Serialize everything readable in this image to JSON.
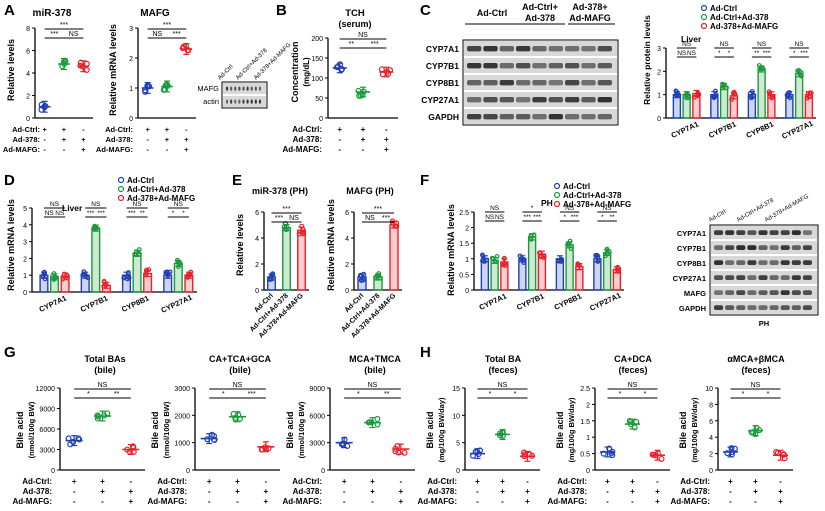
{
  "colors": {
    "ctrl": "#1f3fb5",
    "ad378": "#1a9a3a",
    "mafg": "#e8202a",
    "blot_bg": "#d8d8d8",
    "band": "#222222"
  },
  "panels": {
    "A": {
      "letter": "A",
      "title1": "miR-378",
      "title2": "MAFG",
      "ylabel1": "Relative levels",
      "ylabel2": "Relative mRNA levels",
      "blot_cols": [
        "Ad-Ctrl",
        "Ad-Ctrl+Ad-378",
        "Ad-378+Ad-MAFG"
      ],
      "blot_rows": [
        "MAFG",
        "actin"
      ]
    },
    "B": {
      "letter": "B",
      "title": "TCH",
      "subtitle": "(serum)",
      "ylabel": "Concentration",
      "yunit": "(mg/dL)"
    },
    "C": {
      "letter": "C",
      "lanes": [
        "Ad-Ctrl",
        "Ad-Ctrl+",
        "Ad-378",
        "Ad-378+",
        "Ad-MAFG"
      ],
      "rows": [
        "CYP7A1",
        "CYP7B1",
        "CYP8B1",
        "CYP27A1",
        "GAPDH"
      ],
      "ylabel": "Relative protein levels",
      "tissue": "Liver"
    },
    "D": {
      "letter": "D",
      "ylabel": "Relative mRNA levels",
      "tissue": "Liver"
    },
    "E": {
      "letter": "E",
      "title1": "miR-378 (PH)",
      "title2": "MAFG (PH)",
      "ylabel1": "Relative levels",
      "ylabel2": "Relative mRNA levels",
      "groups": [
        "Ad-Ctrl",
        "Ad-Ctrl+Ad-378",
        "Ad-378+Ad-MAFG"
      ]
    },
    "F": {
      "letter": "F",
      "ylabel": "Relative mRNA levels",
      "tissue": "PH",
      "blot_cols": [
        "Ad-Ctrl",
        "Ad-Ctrl+Ad-378",
        "Ad-378+Ad-MAFG"
      ],
      "blot_rows": [
        "CYP7A1",
        "CYP7B1",
        "CYP8B1",
        "CYP27A1",
        "MAFG",
        "GAPDH"
      ],
      "blot_label": "PH"
    },
    "G": {
      "letter": "G",
      "titles": [
        [
          "Total BAs",
          "(bile)"
        ],
        [
          "CA+TCA+GCA",
          "(bile)"
        ],
        [
          "MCA+TMCA",
          "(bile)"
        ]
      ],
      "ylabel": "Bile acid",
      "yunit": "(nmol/100g BW)"
    },
    "H": {
      "letter": "H",
      "titles": [
        [
          "Total BA",
          "(feces)"
        ],
        [
          "CA+DCA",
          "(feces)"
        ],
        [
          "αMCA+βMCA",
          "(feces)"
        ]
      ],
      "ylabel": "Bile acid",
      "yunit": "(mg/100g BW/day)"
    }
  },
  "treat": {
    "labels": [
      "Ad-Ctrl:",
      "Ad-378:",
      "Ad-MAFG:"
    ],
    "rows": [
      [
        "+",
        "+",
        "-"
      ],
      [
        "-",
        "+",
        "+"
      ],
      [
        "-",
        "-",
        "+"
      ]
    ]
  },
  "legend": [
    "Ad-Ctrl",
    "Ad-Ctrl+Ad-378",
    "Ad-378+Ad-MAFG"
  ],
  "chart_data": [
    {
      "id": "A1",
      "type": "bar",
      "title": "miR-378",
      "ylabel": "Relative levels",
      "categories": [
        "Ad-Ctrl",
        "Ad-Ctrl+Ad-378",
        "Ad-378+Ad-MAFG"
      ],
      "values": [
        1,
        4.8,
        4.6
      ],
      "ylim": [
        0,
        8
      ],
      "yticks": [
        0,
        2,
        4,
        6,
        8
      ],
      "sig": [
        "***",
        "NS",
        "***"
      ]
    },
    {
      "id": "A2",
      "type": "bar",
      "title": "MAFG",
      "ylabel": "Relative mRNA levels",
      "categories": [
        "Ad-Ctrl",
        "Ad-Ctrl+Ad-378",
        "Ad-378+Ad-MAFG"
      ],
      "values": [
        1,
        1.05,
        2.3
      ],
      "ylim": [
        0,
        3
      ],
      "yticks": [
        0,
        1,
        2,
        3
      ],
      "sig": [
        "NS",
        "***",
        "***"
      ]
    },
    {
      "id": "B",
      "type": "bar",
      "title": "TCH (serum)",
      "ylabel": "Concentration (mg/dL)",
      "categories": [
        "Ad-Ctrl",
        "Ad-Ctrl+Ad-378",
        "Ad-378+Ad-MAFG"
      ],
      "values": [
        125,
        65,
        115
      ],
      "ylim": [
        0,
        200
      ],
      "yticks": [
        0,
        50,
        100,
        150,
        200
      ],
      "sig": [
        "**",
        "***",
        "NS"
      ]
    },
    {
      "id": "C",
      "type": "grouped-bar",
      "ylabel": "Relative protein levels",
      "categories": [
        "CYP7A1",
        "CYP7B1",
        "CYP8B1",
        "CYP27A1"
      ],
      "series": [
        {
          "name": "Ad-Ctrl",
          "values": [
            1,
            1,
            1,
            1
          ]
        },
        {
          "name": "Ad-Ctrl+Ad-378",
          "values": [
            1.0,
            1.35,
            2.1,
            1.9
          ]
        },
        {
          "name": "Ad-378+Ad-MAFG",
          "values": [
            1.05,
            0.95,
            1.0,
            1.0
          ]
        }
      ],
      "ylim": [
        0,
        3
      ],
      "yticks": [
        0,
        1,
        2,
        3
      ],
      "sig": [
        [
          "NS",
          "NS",
          "NS"
        ],
        [
          "*",
          "*",
          "NS"
        ],
        [
          "**",
          "***",
          "NS"
        ],
        [
          "*",
          "***",
          "NS"
        ]
      ]
    },
    {
      "id": "D",
      "type": "grouped-bar",
      "ylabel": "Relative mRNA levels",
      "categories": [
        "CYP7A1",
        "CYP7B1",
        "CYP8B1",
        "CYP27A1"
      ],
      "series": [
        {
          "name": "Ad-Ctrl",
          "values": [
            1,
            1,
            1,
            1
          ]
        },
        {
          "name": "Ad-Ctrl+Ad-378",
          "values": [
            0.9,
            3.8,
            2.3,
            1.7
          ]
        },
        {
          "name": "Ad-378+Ad-MAFG",
          "values": [
            0.95,
            0.4,
            1.1,
            1.0
          ]
        }
      ],
      "ylim": [
        0,
        5
      ],
      "yticks": [
        0,
        1,
        2,
        3,
        4,
        5
      ],
      "sig": [
        [
          "NS",
          "NS",
          "NS"
        ],
        [
          "***",
          "***",
          "NS"
        ],
        [
          "***",
          "**",
          "NS"
        ],
        [
          "*",
          "*",
          "NS"
        ]
      ]
    },
    {
      "id": "E1",
      "type": "bar",
      "title": "miR-378 (PH)",
      "ylabel": "Relative levels",
      "categories": [
        "Ad-Ctrl",
        "Ad-Ctrl+Ad-378",
        "Ad-378+Ad-MAFG"
      ],
      "values": [
        1,
        4.8,
        4.6
      ],
      "ylim": [
        0,
        6
      ],
      "yticks": [
        0,
        2,
        4,
        6
      ],
      "sig": [
        "***",
        "NS",
        "***"
      ]
    },
    {
      "id": "E2",
      "type": "bar",
      "title": "MAFG (PH)",
      "ylabel": "Relative mRNA levels",
      "categories": [
        "Ad-Ctrl",
        "Ad-Ctrl+Ad-378",
        "Ad-378+Ad-MAFG"
      ],
      "values": [
        1,
        1.0,
        5
      ],
      "ylim": [
        0,
        6
      ],
      "yticks": [
        0,
        2,
        4,
        6
      ],
      "sig": [
        "NS",
        "***",
        "***"
      ]
    },
    {
      "id": "F",
      "type": "grouped-bar",
      "ylabel": "Relative mRNA levels",
      "categories": [
        "CYP7A1",
        "CYP7B1",
        "CYP8B1",
        "CYP27A1"
      ],
      "series": [
        {
          "name": "Ad-Ctrl",
          "values": [
            1,
            1,
            1,
            1
          ]
        },
        {
          "name": "Ad-Ctrl+Ad-378",
          "values": [
            0.95,
            1.7,
            1.45,
            1.2
          ]
        },
        {
          "name": "Ad-378+Ad-MAFG",
          "values": [
            0.9,
            1.15,
            0.75,
            0.65
          ]
        }
      ],
      "ylim": [
        0,
        2.5
      ],
      "yticks": [
        0,
        0.5,
        1,
        1.5,
        2,
        2.5
      ],
      "sig": [
        [
          "NS",
          "NS",
          "NS"
        ],
        [
          "***",
          "***",
          "*"
        ],
        [
          "*",
          "***",
          "NS"
        ],
        [
          "*",
          "**",
          "NS"
        ]
      ]
    },
    {
      "id": "G1",
      "type": "bar",
      "title": "Total BAs (bile)",
      "ylabel": "Bile acid (nmol/100g BW)",
      "categories": [
        "Ad-Ctrl",
        "Ad-Ctrl+Ad-378",
        "Ad-378+Ad-MAFG"
      ],
      "values": [
        4300,
        7900,
        3000
      ],
      "ylim": [
        0,
        12000
      ],
      "yticks": [
        0,
        3000,
        6000,
        9000,
        12000
      ],
      "sig": [
        "*",
        "**",
        "NS"
      ]
    },
    {
      "id": "G2",
      "type": "bar",
      "title": "CA+TCA+GCA (bile)",
      "ylabel": "Bile acid (nmol/100g BW)",
      "categories": [
        "Ad-Ctrl",
        "Ad-Ctrl+Ad-378",
        "Ad-378+Ad-MAFG"
      ],
      "values": [
        1150,
        1950,
        850
      ],
      "ylim": [
        0,
        3000
      ],
      "yticks": [
        0,
        1000,
        2000,
        3000
      ],
      "sig": [
        "*",
        "***",
        "NS"
      ]
    },
    {
      "id": "G3",
      "type": "bar",
      "title": "MCA+TMCA (bile)",
      "ylabel": "Bile acid (nmol/100g BW)",
      "categories": [
        "Ad-Ctrl",
        "Ad-Ctrl+Ad-378",
        "Ad-378+Ad-MAFG"
      ],
      "values": [
        3000,
        5200,
        2300
      ],
      "ylim": [
        0,
        9000
      ],
      "yticks": [
        0,
        3000,
        6000,
        9000
      ],
      "sig": [
        "*",
        "**",
        "NS"
      ]
    },
    {
      "id": "H1",
      "type": "bar",
      "title": "Total BA (feces)",
      "ylabel": "Bile acid (mg/100g BW/day)",
      "categories": [
        "Ad-Ctrl",
        "Ad-Ctrl+Ad-378",
        "Ad-378+Ad-MAFG"
      ],
      "values": [
        3,
        6.5,
        2.5
      ],
      "ylim": [
        0,
        15
      ],
      "yticks": [
        0,
        5,
        10,
        15
      ],
      "sig": [
        "*",
        "*",
        "NS"
      ]
    },
    {
      "id": "H2",
      "type": "bar",
      "title": "CA+DCA (feces)",
      "ylabel": "Bile acid (mg/100g BW/day)",
      "categories": [
        "Ad-Ctrl",
        "Ad-Ctrl+Ad-378",
        "Ad-378+Ad-MAFG"
      ],
      "values": [
        0.55,
        1.4,
        0.45
      ],
      "ylim": [
        0,
        2.5
      ],
      "yticks": [
        0,
        0.5,
        1,
        1.5,
        2,
        2.5
      ],
      "sig": [
        "*",
        "*",
        "NS"
      ]
    },
    {
      "id": "H3",
      "type": "bar",
      "title": "αMCA+βMCA (feces)",
      "ylabel": "Bile acid (mg/100g BW/day)",
      "categories": [
        "Ad-Ctrl",
        "Ad-Ctrl+Ad-378",
        "Ad-378+Ad-MAFG"
      ],
      "values": [
        2.2,
        4.8,
        1.8
      ],
      "ylim": [
        0,
        10
      ],
      "yticks": [
        0,
        2,
        4,
        6,
        8,
        10
      ],
      "sig": [
        "*",
        "*",
        "NS"
      ]
    }
  ]
}
